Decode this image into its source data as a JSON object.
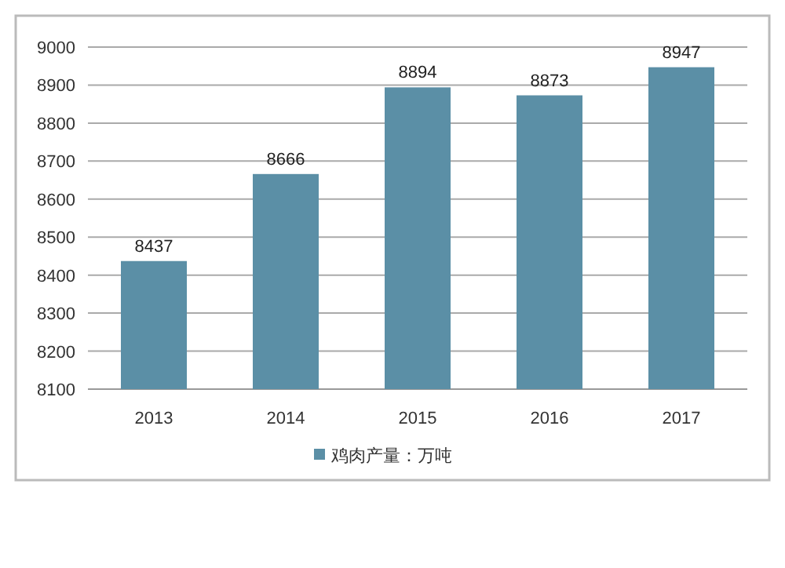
{
  "chart_data": {
    "type": "bar",
    "categories": [
      "2013",
      "2014",
      "2015",
      "2016",
      "2017"
    ],
    "series": [
      {
        "name": "鸡肉产量：万吨",
        "color": "#5b8fa6",
        "values": [
          8437,
          8666,
          8894,
          8873,
          8947
        ]
      }
    ],
    "ylim": [
      8100,
      9000
    ],
    "yticks": [
      8100,
      8200,
      8300,
      8400,
      8500,
      8600,
      8700,
      8800,
      8900,
      9000
    ],
    "grid": "y",
    "data_labels": true,
    "legend": "bottom"
  }
}
